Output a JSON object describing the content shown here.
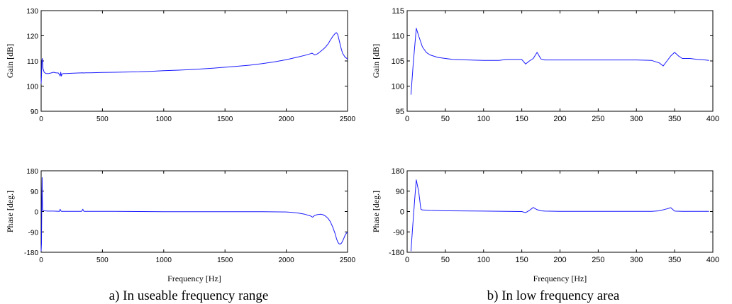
{
  "captions": {
    "left": "a) In useable frequency range",
    "right": "b) In low frequency area"
  },
  "colors": {
    "line": "#1a1aff",
    "axis": "#000000"
  },
  "chart_data": [
    {
      "id": "a-gain",
      "type": "line",
      "xlim": [
        0,
        2500
      ],
      "ylim": [
        90,
        130
      ],
      "xticks": [
        0,
        500,
        1000,
        1500,
        2000,
        2500
      ],
      "yticks": [
        90,
        100,
        110,
        120,
        130
      ],
      "xlabel": "",
      "ylabel": "Gain [dB]",
      "series": [
        {
          "x": [
            0,
            3,
            6,
            10,
            15,
            25,
            40,
            60,
            80,
            100,
            120,
            140,
            150,
            155,
            160,
            165,
            170,
            180,
            200,
            250,
            300,
            340,
            350,
            360,
            400,
            500,
            600,
            700,
            800,
            900,
            1000,
            1100,
            1200,
            1300,
            1400,
            1500,
            1600,
            1700,
            1800,
            1900,
            2000,
            2100,
            2150,
            2200,
            2210,
            2220,
            2230,
            2240,
            2260,
            2280,
            2300,
            2320,
            2340,
            2360,
            2380,
            2400,
            2410,
            2420,
            2430,
            2440,
            2450,
            2460,
            2480,
            2500
          ],
          "y": [
            101,
            104,
            110,
            111,
            107,
            105.5,
            105,
            105,
            105.2,
            105.5,
            105.3,
            105.2,
            104.5,
            104,
            105.5,
            104,
            104.8,
            105,
            105,
            105.1,
            105.2,
            105.3,
            105.2,
            105.3,
            105.3,
            105.4,
            105.5,
            105.6,
            105.7,
            105.9,
            106.1,
            106.3,
            106.5,
            106.8,
            107.1,
            107.5,
            107.9,
            108.3,
            108.9,
            109.6,
            110.5,
            111.6,
            112.2,
            112.9,
            113.1,
            112.8,
            112.4,
            112.5,
            113,
            113.8,
            114.6,
            115.5,
            116.7,
            118.3,
            119.8,
            121,
            121.2,
            120.5,
            118.5,
            116.5,
            114.5,
            113,
            111.5,
            110.8
          ]
        }
      ]
    },
    {
      "id": "a-phase",
      "type": "line",
      "xlim": [
        0,
        2500
      ],
      "ylim": [
        -180,
        180
      ],
      "xticks": [
        0,
        500,
        1000,
        1500,
        2000,
        2500
      ],
      "yticks": [
        -180,
        -90,
        0,
        90,
        180
      ],
      "xlabel": "Frequency [Hz]",
      "ylabel": "Phase [deg.]",
      "series": [
        {
          "x": [
            0,
            3,
            5,
            8,
            10,
            12,
            15,
            20,
            30,
            50,
            100,
            150,
            155,
            160,
            165,
            175,
            200,
            300,
            330,
            340,
            345,
            350,
            360,
            400,
            600,
            800,
            1000,
            1200,
            1500,
            1800,
            2000,
            2050,
            2100,
            2150,
            2200,
            2215,
            2230,
            2250,
            2280,
            2300,
            2320,
            2340,
            2360,
            2380,
            2400,
            2410,
            2420,
            2430,
            2440,
            2450,
            2460,
            2470,
            2480,
            2490,
            2500
          ],
          "y": [
            -175,
            -140,
            40,
            150,
            60,
            10,
            4,
            4,
            3,
            2,
            2,
            1,
            10,
            4,
            1,
            1,
            1,
            1,
            1,
            10,
            3,
            1,
            1,
            1,
            1,
            0,
            -1,
            -1,
            -1,
            -1,
            -2,
            -4,
            -7,
            -12,
            -20,
            -25,
            -18,
            -14,
            -12,
            -14,
            -20,
            -30,
            -45,
            -70,
            -100,
            -120,
            -135,
            -142,
            -144,
            -140,
            -130,
            -118,
            -105,
            -96,
            -92
          ]
        }
      ]
    },
    {
      "id": "b-gain",
      "type": "line",
      "xlim": [
        0,
        400
      ],
      "ylim": [
        95,
        115
      ],
      "xticks": [
        0,
        50,
        100,
        150,
        200,
        250,
        300,
        350,
        400
      ],
      "yticks": [
        95,
        100,
        105,
        110,
        115
      ],
      "xlabel": "",
      "ylabel": "Gain [dB]",
      "series": [
        {
          "x": [
            5,
            8,
            12,
            15,
            20,
            25,
            30,
            40,
            50,
            60,
            80,
            100,
            120,
            130,
            140,
            150,
            155,
            160,
            165,
            170,
            175,
            180,
            200,
            250,
            300,
            320,
            330,
            335,
            340,
            345,
            350,
            355,
            360,
            370,
            380,
            390,
            395
          ],
          "y": [
            98.3,
            104.5,
            111.5,
            110,
            107.8,
            106.7,
            106.2,
            105.7,
            105.5,
            105.3,
            105.2,
            105.1,
            105.1,
            105.3,
            105.3,
            105.3,
            104.4,
            105,
            105.5,
            106.7,
            105.4,
            105.2,
            105.2,
            105.2,
            105.2,
            105.1,
            104.6,
            104,
            105,
            106,
            106.7,
            106,
            105.5,
            105.5,
            105.3,
            105.2,
            105.1
          ]
        }
      ]
    },
    {
      "id": "b-phase",
      "type": "line",
      "xlim": [
        0,
        400
      ],
      "ylim": [
        -180,
        180
      ],
      "xticks": [
        0,
        50,
        100,
        150,
        200,
        250,
        300,
        350,
        400
      ],
      "yticks": [
        -180,
        -90,
        0,
        90,
        180
      ],
      "xlabel": "Frequency [Hz]",
      "ylabel": "Phase [deg.]",
      "series": [
        {
          "x": [
            5,
            7,
            10,
            12,
            15,
            18,
            20,
            30,
            50,
            100,
            150,
            155,
            160,
            165,
            170,
            175,
            180,
            200,
            250,
            300,
            320,
            330,
            340,
            345,
            350,
            360,
            380,
            395
          ],
          "y": [
            -175,
            -80,
            60,
            140,
            90,
            10,
            7,
            5,
            3,
            2,
            0,
            -5,
            5,
            18,
            8,
            3,
            2,
            1,
            1,
            1,
            1,
            3,
            12,
            17,
            2,
            1,
            1,
            1
          ]
        }
      ]
    }
  ]
}
